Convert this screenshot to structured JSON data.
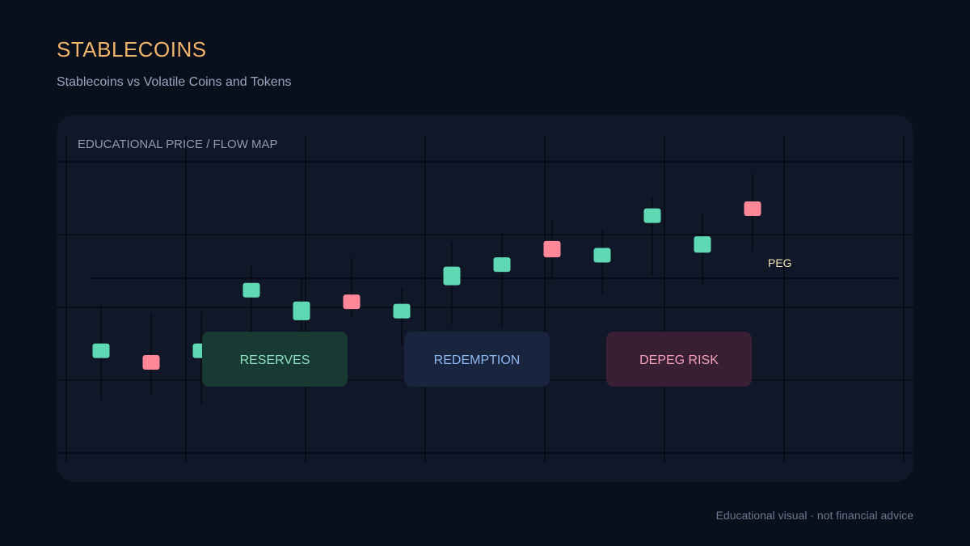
{
  "header": {
    "title": "STABLECOINS",
    "subtitle": "Stablecoins vs Volatile Coins and Tokens"
  },
  "footer": {
    "note": "Educational visual · not financial advice"
  },
  "chart_data": {
    "type": "candlestick",
    "title": "EDUCATIONAL PRICE / FLOW MAP",
    "peg_label": "PEG",
    "colors": {
      "up": "#5fd8b4",
      "down": "#ff8797",
      "panel": "#0f1728",
      "grid": "#020409",
      "title": "#8f9ab4",
      "peg": "#f5e6b8"
    },
    "series": [
      {
        "open": 10,
        "close": 12,
        "high": 28,
        "low": -12,
        "direction": "up"
      },
      {
        "open": 7,
        "close": 2,
        "high": 25,
        "low": -10,
        "direction": "down"
      },
      {
        "open": 10,
        "close": 12,
        "high": 26,
        "low": -14,
        "direction": "up"
      },
      {
        "open": 32,
        "close": 38,
        "high": 46,
        "low": 4,
        "direction": "up"
      },
      {
        "open": 22,
        "close": 30,
        "high": 40,
        "low": 5,
        "direction": "up"
      },
      {
        "open": 33,
        "close": 29,
        "high": 49,
        "low": 23,
        "direction": "down"
      },
      {
        "open": 23,
        "close": 29,
        "high": 36,
        "low": 11,
        "direction": "up"
      },
      {
        "open": 37,
        "close": 45,
        "high": 56,
        "low": 20,
        "direction": "up"
      },
      {
        "open": 44,
        "close": 49,
        "high": 59,
        "low": 19,
        "direction": "up"
      },
      {
        "open": 56,
        "close": 49,
        "high": 65,
        "low": 39,
        "direction": "down"
      },
      {
        "open": 49,
        "close": 53,
        "high": 61,
        "low": 33,
        "direction": "up"
      },
      {
        "open": 64,
        "close": 70,
        "high": 75,
        "low": 41,
        "direction": "up"
      },
      {
        "open": 51,
        "close": 58,
        "high": 68,
        "low": 37,
        "direction": "up"
      },
      {
        "open": 73,
        "close": 68,
        "high": 85,
        "low": 52,
        "direction": "down"
      }
    ],
    "peg_value": 40,
    "y_range": [
      -35,
      90
    ],
    "zones": [
      {
        "label": "RESERVES",
        "color": "#173a32",
        "text_color": "#8fe0c4"
      },
      {
        "label": "REDEMPTION",
        "color": "#19243f",
        "text_color": "#8fb8f0"
      },
      {
        "label": "DEPEG RISK",
        "color": "#391f34",
        "text_color": "#f4a0b8"
      }
    ],
    "grid": true
  }
}
